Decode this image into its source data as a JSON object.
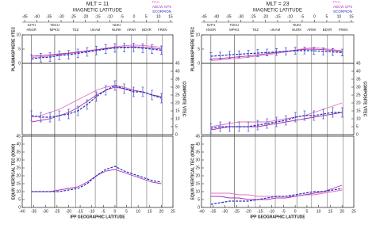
{
  "chart_data": [
    {
      "type": "line",
      "title": "MLT = 11",
      "top_axis_label": "MAGNETIC LATITUDE",
      "x_label": "IPP GEOGRAPHIC LATITUDE",
      "mlat_xlim": [
        -46,
        16
      ],
      "mlat_xticks": [
        -45,
        -40,
        -35,
        -30,
        -25,
        -20,
        -15,
        -10,
        -5,
        0,
        5,
        10,
        15
      ],
      "xlim": [
        -40,
        25
      ],
      "xticks": [
        -40,
        -35,
        -30,
        -25,
        -20,
        -15,
        -10,
        -5,
        0,
        5,
        10,
        15,
        20,
        25
      ],
      "stations": [
        "SJTH",
        "HNGR",
        "TDCU",
        "MPKG",
        "TEZ",
        "UKAM",
        "NUKI",
        "NURK",
        "ARWI",
        "BDVR",
        "FREN"
      ],
      "x": [
        -36,
        -32,
        -28,
        -24,
        -20,
        -16,
        -12,
        -8,
        -4,
        0,
        4,
        8,
        12,
        16,
        20
      ],
      "panels": [
        {
          "ylabel": "PLASMASPHERE VTEC",
          "side": "left",
          "ylim": [
            0,
            10
          ],
          "yticks": [
            0,
            5,
            10
          ],
          "series": [
            {
              "name": "PAH",
              "color": "#e070c0",
              "values": [
                2,
                2.3,
                2.6,
                3,
                3.4,
                3.8,
                4.3,
                4.8,
                5.3,
                5.8,
                6.2,
                6.4,
                6.3,
                6,
                5.6
              ]
            },
            {
              "name": "ABCW GPS",
              "color": "#b030b0",
              "values": [
                2.5,
                2.7,
                3,
                3.3,
                3.6,
                4,
                4.4,
                4.8,
                5.2,
                5.5,
                5.7,
                5.8,
                5.7,
                5.4,
                5
              ]
            },
            {
              "name": "SCORPION",
              "color": "#2030c0",
              "values": [
                1.5,
                2,
                2.2,
                2.8,
                3,
                3.5,
                4,
                4.5,
                5,
                5.4,
                5.5,
                5.6,
                5.3,
                5,
                4.6
              ],
              "errors": [
                1.5,
                1.5,
                1.5,
                1.5,
                1.5,
                1.5,
                1.5,
                1.5,
                1.5,
                1.5,
                1.5,
                1.5,
                1.5,
                1.5,
                1.5
              ]
            }
          ]
        },
        {
          "ylabel": "COMPOSITE VTEC",
          "side": "right",
          "ylim": [
            0,
            45
          ],
          "yticks": [
            0,
            5,
            10,
            15,
            20,
            25,
            30,
            35,
            40,
            45
          ],
          "series": [
            {
              "name": "PAH",
              "color": "#e070c0",
              "values": [
                11,
                12,
                14,
                16,
                19,
                22,
                25,
                28,
                30,
                31,
                30,
                28,
                27,
                25,
                24
              ]
            },
            {
              "name": "ABCW GPS",
              "color": "#b030b0",
              "values": [
                8,
                9,
                10,
                12,
                14,
                17,
                21,
                25,
                28,
                30,
                29,
                28,
                27,
                25,
                24
              ]
            },
            {
              "name": "SCORPION",
              "color": "#2030c0",
              "values": [
                12,
                11,
                11,
                12,
                13,
                15,
                19,
                24,
                28,
                31,
                29,
                27,
                27,
                25,
                23
              ],
              "errors": [
                3,
                3,
                3,
                3,
                3,
                3,
                3,
                3,
                3,
                3,
                3,
                3,
                3,
                3,
                3
              ]
            }
          ]
        },
        {
          "ylabel": "EQUIV VERTICAL TEC (IONO)",
          "side": "left",
          "ylim": [
            0,
            45
          ],
          "yticks": [
            0,
            5,
            10,
            15,
            20,
            25,
            30,
            35,
            40,
            45
          ],
          "series": [
            {
              "name": "ABCW GPS",
              "color": "#b030b0",
              "values": [
                10,
                10,
                10,
                11,
                12,
                13,
                16,
                20,
                23,
                24,
                22,
                20,
                18,
                16,
                15
              ]
            },
            {
              "name": "SCORPION",
              "color": "#2030c0",
              "values": [
                10,
                10,
                10,
                10,
                11,
                12,
                15,
                20,
                24,
                26,
                23,
                21,
                19,
                17,
                16
              ]
            }
          ]
        }
      ]
    },
    {
      "type": "line",
      "title": "MLT = 23",
      "top_axis_label": "MAGNETIC LATITUDE",
      "x_label": "IPP GEOGRAPHIC LATITUDE",
      "mlat_xlim": [
        -46,
        16
      ],
      "mlat_xticks": [
        -45,
        -40,
        -35,
        -30,
        -25,
        -20,
        -15,
        -10,
        -5,
        0,
        5,
        10,
        15
      ],
      "xlim": [
        -40,
        25
      ],
      "xticks": [
        -40,
        -35,
        -30,
        -25,
        -20,
        -15,
        -10,
        -5,
        0,
        5,
        10,
        15,
        20,
        25
      ],
      "stations": [
        "SJTH",
        "HNGR",
        "TDCU",
        "MPKG",
        "TEZ",
        "UKAM",
        "NUKI",
        "NURK",
        "ARWI",
        "BDVR",
        "FREN"
      ],
      "x": [
        -36,
        -32,
        -28,
        -24,
        -20,
        -16,
        -12,
        -8,
        -4,
        0,
        4,
        8,
        12,
        16,
        20
      ],
      "panels": [
        {
          "ylabel": "PLASMASPHERE VTEC",
          "side": "left",
          "ylim": [
            0,
            10
          ],
          "yticks": [
            0,
            5,
            10
          ],
          "series": [
            {
              "name": "PAH",
              "color": "#e070c0",
              "values": [
                1,
                1.2,
                1.5,
                1.8,
                2.2,
                2.6,
                3,
                3.5,
                4,
                4.6,
                5.2,
                5.5,
                5.2,
                4.8,
                4.4
              ]
            },
            {
              "name": "ABCW GPS",
              "color": "#b030b0",
              "values": [
                1.5,
                1.7,
                2,
                2.3,
                2.6,
                3,
                3.4,
                3.8,
                4.2,
                4.6,
                4.9,
                5,
                4.8,
                4.5,
                4.2
              ]
            },
            {
              "name": "SCORPION",
              "color": "#2030c0",
              "values": [
                2.5,
                2.7,
                3,
                3.2,
                3.4,
                3.6,
                3.8,
                4,
                4.2,
                4.4,
                4.5,
                4.4,
                4.2,
                4,
                3.8
              ],
              "errors": [
                1.2,
                1.2,
                1.2,
                1.2,
                1.2,
                1.2,
                1.2,
                1.2,
                1.2,
                1.2,
                1.2,
                1.2,
                1.2,
                1.2,
                1.2
              ]
            }
          ]
        },
        {
          "ylabel": "COMPOSITE VTEC",
          "side": "right",
          "ylim": [
            0,
            45
          ],
          "yticks": [
            0,
            5,
            10,
            15,
            20,
            25,
            30,
            35,
            40,
            45
          ],
          "series": [
            {
              "name": "PAH",
              "color": "#e070c0",
              "values": [
                5,
                6,
                7,
                8,
                8,
                8,
                8,
                9,
                10,
                11,
                12,
                14,
                16,
                18,
                20
              ]
            },
            {
              "name": "ABCW GPS",
              "color": "#b030b0",
              "values": [
                3,
                4,
                5,
                5,
                5,
                5,
                6,
                7,
                8,
                9,
                10,
                11,
                12,
                13,
                14
              ]
            },
            {
              "name": "SCORPION",
              "color": "#2030c0",
              "values": [
                4,
                5,
                5,
                5,
                5,
                6,
                7,
                8,
                9,
                11,
                12,
                12,
                13,
                14,
                14
              ],
              "errors": [
                3,
                3,
                3,
                3,
                3,
                3,
                3,
                3,
                3,
                3,
                3,
                3,
                3,
                3,
                3
              ]
            }
          ]
        },
        {
          "ylabel": "EQUIV VERTICAL TEC (IONO)",
          "side": "left",
          "ylim": [
            0,
            45
          ],
          "yticks": [
            0,
            5,
            10,
            15,
            20,
            25,
            30,
            35,
            40,
            45
          ],
          "series": [
            {
              "name": "PAH",
              "color": "#e070c0",
              "values": [
                9,
                9,
                9,
                8,
                8,
                7,
                7,
                7,
                7,
                7,
                8,
                8,
                9,
                10,
                11
              ]
            },
            {
              "name": "ABCW GPS",
              "color": "#b030b0",
              "values": [
                7,
                7,
                6,
                6,
                5,
                5,
                5,
                6,
                6,
                7,
                8,
                9,
                10,
                12,
                14
              ]
            },
            {
              "name": "SCORPION",
              "color": "#2030c0",
              "values": [
                2,
                3,
                4,
                4,
                4,
                5,
                6,
                7,
                7,
                8,
                9,
                10,
                10,
                11,
                12
              ]
            }
          ]
        }
      ]
    }
  ]
}
